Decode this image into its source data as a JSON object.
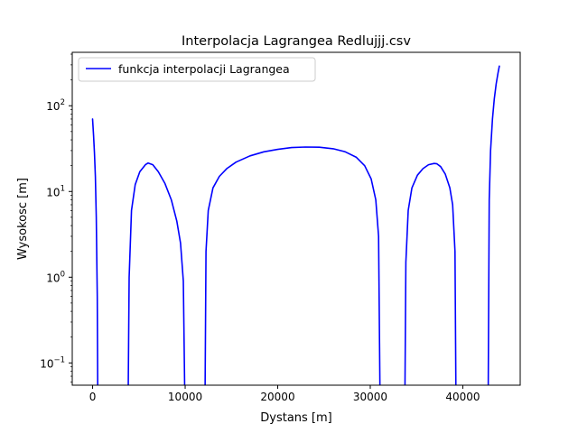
{
  "chart_data": {
    "type": "line",
    "title": "Interpolacja Lagrangea Redlujjj.csv",
    "xlabel": "Dystans [m]",
    "ylabel": "Wysokosc [m]",
    "yscale": "log",
    "xlim": [
      -2200,
      46200
    ],
    "ylim": [
      0.055,
      420
    ],
    "grid": false,
    "legend_position": "top-left",
    "xticks": [
      0,
      10000,
      20000,
      30000,
      40000
    ],
    "xtick_labels": [
      "0",
      "10000",
      "20000",
      "30000",
      "40000"
    ],
    "yticks": [
      0.1,
      1,
      10,
      100
    ],
    "ytick_bases": [
      "10",
      "10",
      "10",
      "10"
    ],
    "ytick_exponents": [
      "−1",
      "0",
      "1",
      "2"
    ],
    "series": [
      {
        "name": "funkcja interpolacji Lagrangea",
        "color": "#0000ff",
        "segments": [
          {
            "x": [
              0,
              100,
              200,
              300,
              400,
              500,
              550
            ],
            "y": [
              70,
              45,
              28,
              15,
              5,
              0.6,
              0.05
            ]
          },
          {
            "x": [
              3850,
              3950,
              4200,
              4600,
              5100,
              5700,
              6000,
              6500,
              7100,
              7800,
              8500,
              9100,
              9500,
              9800,
              9950
            ],
            "y": [
              0.05,
              1,
              6,
              12,
              17,
              20.5,
              21.5,
              20.5,
              17,
              12.5,
              8,
              4.5,
              2.5,
              0.9,
              0.05
            ]
          },
          {
            "x": [
              12150,
              12250,
              12500,
              13000,
              13700,
              14500,
              15500,
              17000,
              18500,
              20000,
              21500,
              23000,
              24500,
              26000,
              27300,
              28500,
              29400,
              30100,
              30600,
              30900,
              31050
            ],
            "y": [
              0.05,
              2,
              6,
              11,
              15,
              18.5,
              22,
              26,
              29,
              31,
              32.5,
              33,
              32.8,
              31.5,
              29,
              25,
              20,
              14,
              8,
              3,
              0.05
            ]
          },
          {
            "x": [
              33750,
              33850,
              34100,
              34500,
              35100,
              35700,
              36300,
              36900,
              37200,
              37600,
              38100,
              38600,
              38900,
              39150,
              39250
            ],
            "y": [
              0.05,
              1.5,
              6,
              11,
              15.5,
              18.5,
              20.5,
              21.2,
              21,
              19.5,
              16,
              11,
              7,
              2,
              0.05
            ]
          },
          {
            "x": [
              42750,
              42850,
              43000,
              43200,
              43400,
              43600,
              43800,
              43950
            ],
            "y": [
              0.05,
              8,
              30,
              70,
              120,
              180,
              240,
              290
            ]
          }
        ]
      }
    ]
  }
}
